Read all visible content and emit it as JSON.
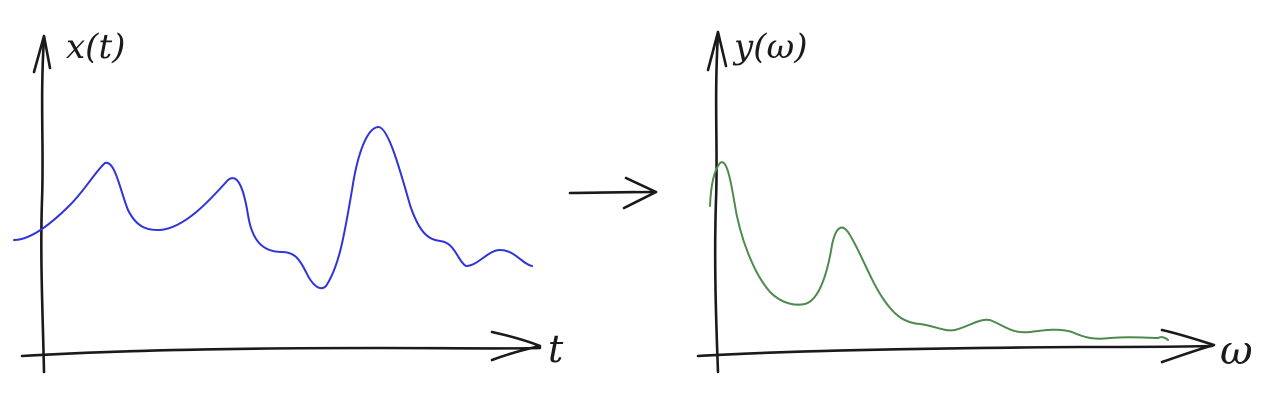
{
  "left_plot": {
    "y_label": "x(t)",
    "x_label": "t",
    "curve_color": "#2f34d8"
  },
  "right_plot": {
    "y_label": "y(ω)",
    "x_label": "ω",
    "curve_color": "#4e8a4e"
  },
  "transform_arrow": {
    "icon": "right-arrow-icon"
  }
}
